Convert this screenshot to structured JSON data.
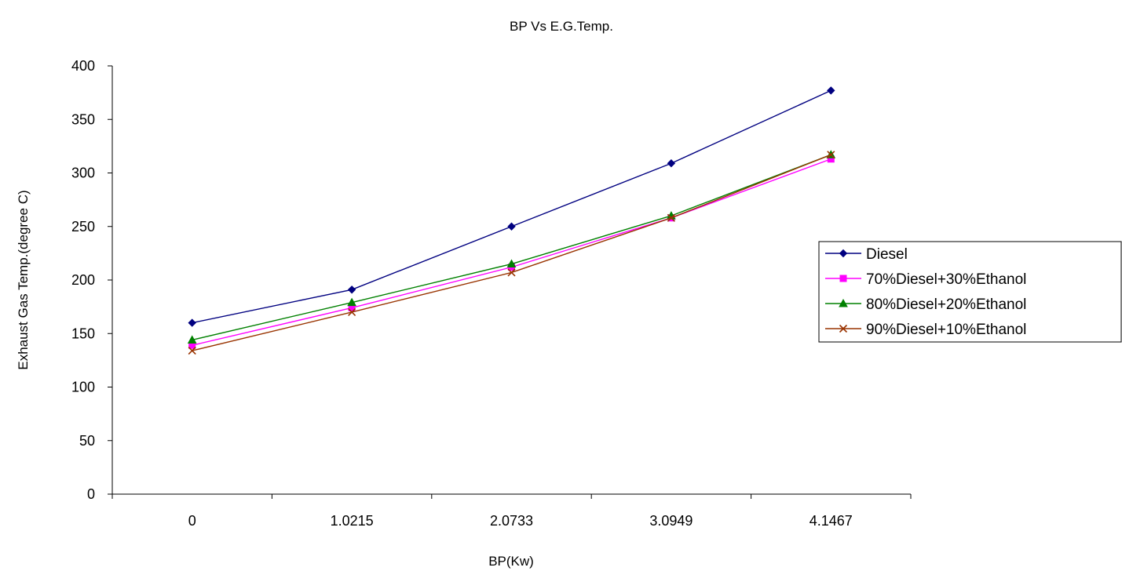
{
  "chart_data": {
    "type": "line",
    "title": "BP Vs E.G.Temp.",
    "xlabel": "BP(Kw)",
    "ylabel": "Exhaust Gas Temp.(degree C)",
    "categories": [
      "0",
      "1.0215",
      "2.0733",
      "3.0949",
      "4.1467"
    ],
    "ylim": [
      0,
      400
    ],
    "yticks": [
      "0",
      "50",
      "100",
      "150",
      "200",
      "250",
      "300",
      "350",
      "400"
    ],
    "grid": false,
    "legend_position": "right",
    "series": [
      {
        "name": "Diesel",
        "color": "#000080",
        "marker": "diamond",
        "values": [
          160,
          191,
          250,
          309,
          377
        ]
      },
      {
        "name": "70%Diesel+30%Ethanol",
        "color": "#ff00ff",
        "marker": "square",
        "values": [
          139,
          174,
          212,
          258,
          313
        ]
      },
      {
        "name": "80%Diesel+20%Ethanol",
        "color": "#008000",
        "marker": "triangle",
        "values": [
          144,
          179,
          215,
          260,
          317
        ]
      },
      {
        "name": "90%Diesel+10%Ethanol",
        "color": "#993300",
        "marker": "x",
        "values": [
          134,
          170,
          207,
          258,
          317
        ]
      }
    ]
  }
}
